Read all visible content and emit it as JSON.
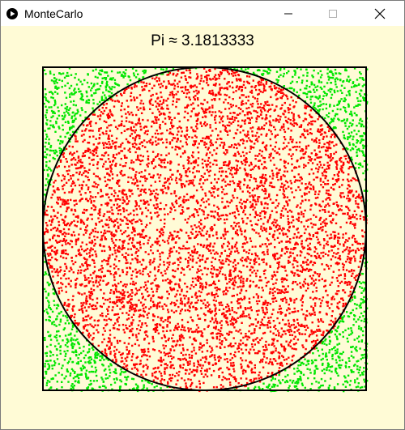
{
  "window": {
    "title": "MonteCarlo",
    "buttons": [
      "minimize-icon",
      "maximize-icon",
      "close-icon"
    ]
  },
  "simulation": {
    "label": "Pi ≈ 3.1813333",
    "estimate": 3.1813333,
    "inside_color": "#ff0000",
    "outside_color": "#00e600",
    "background_color": "#fffbd6"
  },
  "colors": {
    "title_bar": "#ffffff",
    "border": "#000000"
  }
}
